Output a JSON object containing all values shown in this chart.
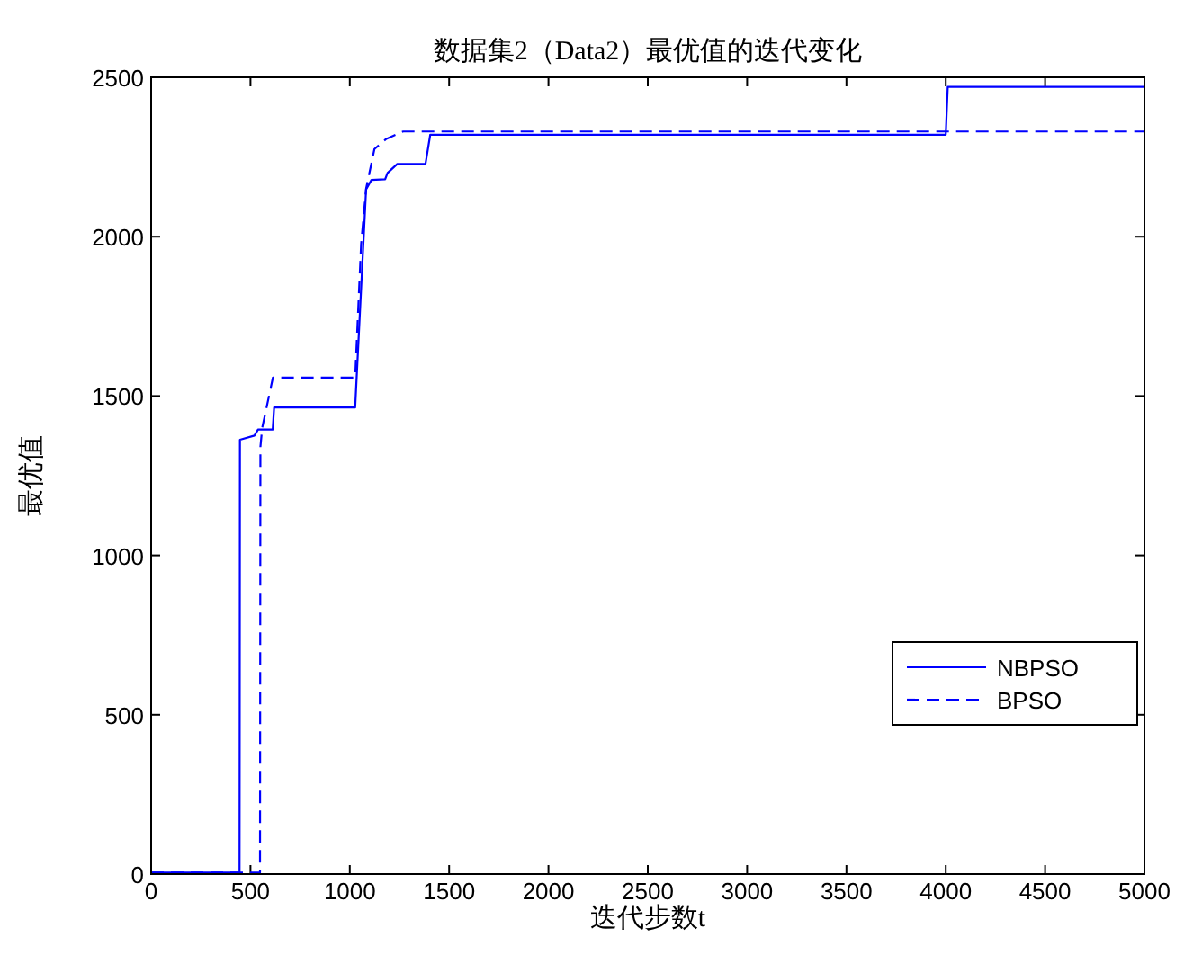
{
  "chart_data": {
    "type": "line",
    "title": "数据集2（Data2）最优值的迭代变化",
    "xlabel": "迭代步数t",
    "ylabel": "最优值",
    "xlim": [
      0,
      5000
    ],
    "xticks": [
      0,
      500,
      1000,
      1500,
      2000,
      2500,
      3000,
      3500,
      4000,
      4500,
      5000
    ],
    "ylim": [
      0,
      2500
    ],
    "yticks": [
      0,
      500,
      1000,
      1500,
      2000,
      2500
    ],
    "grid": false,
    "legend": "bottom right",
    "series": [
      {
        "name": "NBPSO",
        "color": "#0000ff",
        "line_style": "solid",
        "x": [
          0,
          445,
          447,
          520,
          538,
          612,
          619,
          1027,
          1082,
          1109,
          1178,
          1190,
          1239,
          1381,
          1405,
          4000,
          4010,
          5000
        ],
        "values": [
          5,
          5,
          1363,
          1376,
          1395,
          1395,
          1464,
          1464,
          2148,
          2178,
          2180,
          2200,
          2228,
          2228,
          2320,
          2320,
          2470,
          2470
        ]
      },
      {
        "name": "BPSO",
        "color": "#0000ff",
        "line_style": "dashed",
        "x": [
          0,
          548,
          550,
          559,
          613,
          1027,
          1057,
          1082,
          1124,
          1184,
          1269,
          5000
        ],
        "values": [
          5,
          5,
          1340,
          1400,
          1558,
          1558,
          1976,
          2150,
          2275,
          2307,
          2330,
          2330
        ]
      }
    ]
  }
}
